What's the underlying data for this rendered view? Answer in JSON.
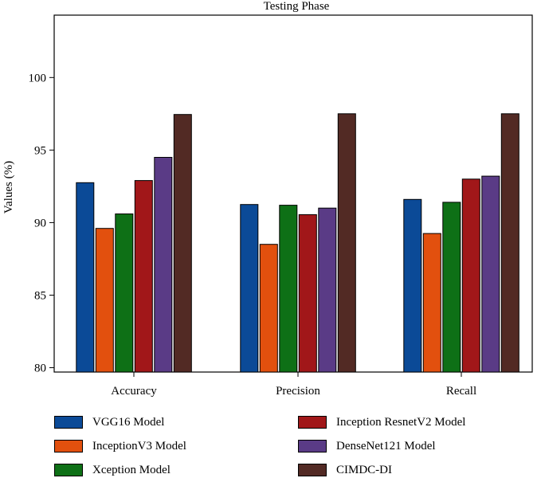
{
  "chart_data": {
    "type": "bar",
    "title": "Testing Phase",
    "xlabel": "",
    "ylabel": "Values (%)",
    "categories": [
      "Accuracy",
      "Precision",
      "Recall"
    ],
    "ylim": [
      79.7,
      104.3
    ],
    "yticks": [
      80,
      85,
      90,
      95,
      100
    ],
    "grid": false,
    "legend_position": "bottom",
    "series": [
      {
        "name": "VGG16 Model",
        "color": "#0b4a97",
        "values": [
          92.75,
          91.25,
          91.6
        ]
      },
      {
        "name": "InceptionV3 Model",
        "color": "#e2500e",
        "values": [
          89.6,
          88.5,
          89.25
        ]
      },
      {
        "name": "Xception Model",
        "color": "#0e7016",
        "values": [
          90.6,
          91.2,
          91.4
        ]
      },
      {
        "name": "Inception ResnetV2 Model",
        "color": "#a11719",
        "values": [
          92.9,
          90.55,
          93.0
        ]
      },
      {
        "name": "DenseNet121 Model",
        "color": "#5a3b86",
        "values": [
          94.5,
          91.0,
          93.2
        ]
      },
      {
        "name": "CIMDC-DI",
        "color": "#522a24",
        "values": [
          97.45,
          97.5,
          97.5
        ]
      }
    ]
  }
}
